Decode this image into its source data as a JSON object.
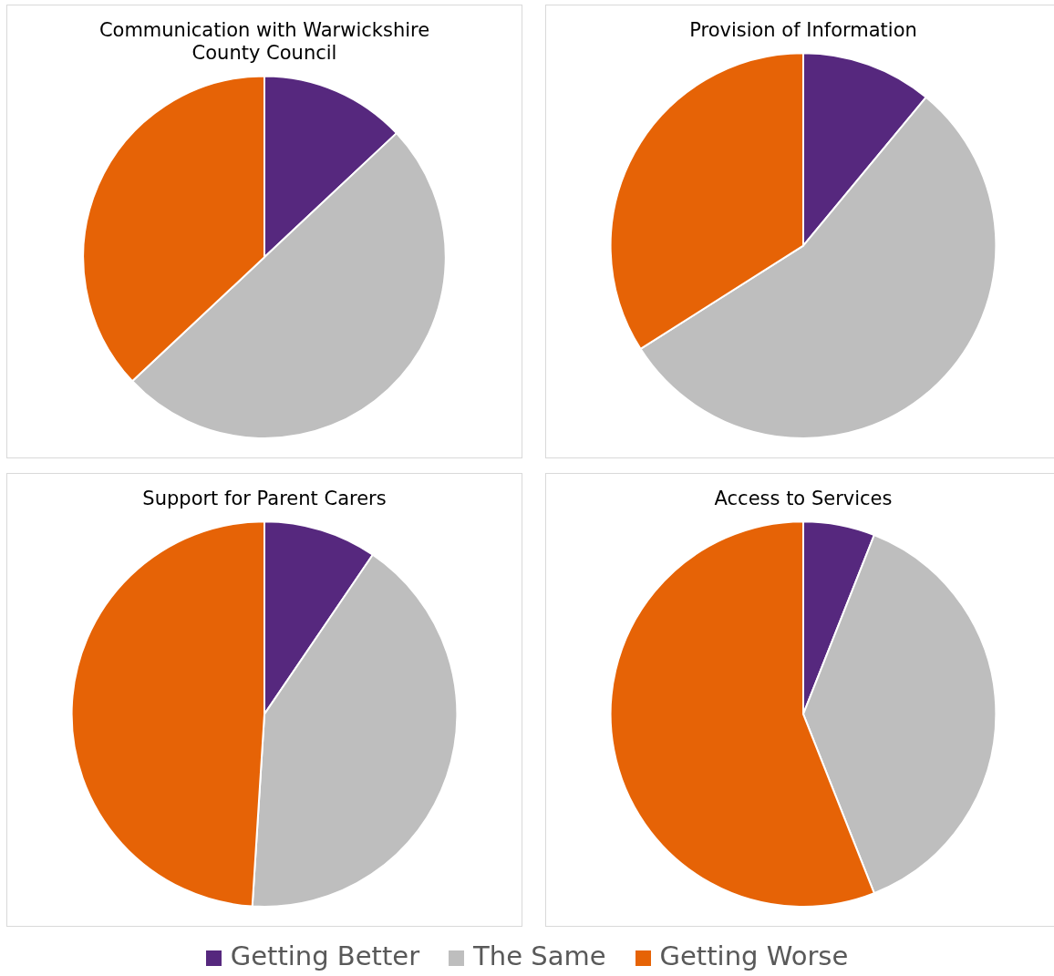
{
  "chart_data": [
    {
      "type": "pie",
      "title": "Communication with Warwickshire County Council",
      "categories": [
        "Getting Better",
        "The Same",
        "Getting Worse"
      ],
      "values": [
        13,
        50,
        37
      ],
      "colors": [
        "#56287e",
        "#bebebe",
        "#e66306"
      ],
      "legend": "bottom"
    },
    {
      "type": "pie",
      "title": "Provision of Information",
      "categories": [
        null,
        null,
        null
      ],
      "values": [
        11,
        55,
        34
      ],
      "colors": [
        "#56287e",
        "#bebebe",
        "#e66306"
      ]
    },
    {
      "type": "pie",
      "title": "Support for Parent Carers",
      "categories": [
        null,
        null,
        null
      ],
      "values": [
        9.5,
        41.5,
        49
      ],
      "colors": [
        "#56287e",
        "#bebebe",
        "#e66306"
      ]
    },
    {
      "type": "pie",
      "title": "Access to Services",
      "categories": [
        null,
        null,
        null
      ],
      "values": [
        6,
        38,
        56
      ],
      "colors": [
        "#56287e",
        "#bebebe",
        "#e66306"
      ]
    }
  ]
}
